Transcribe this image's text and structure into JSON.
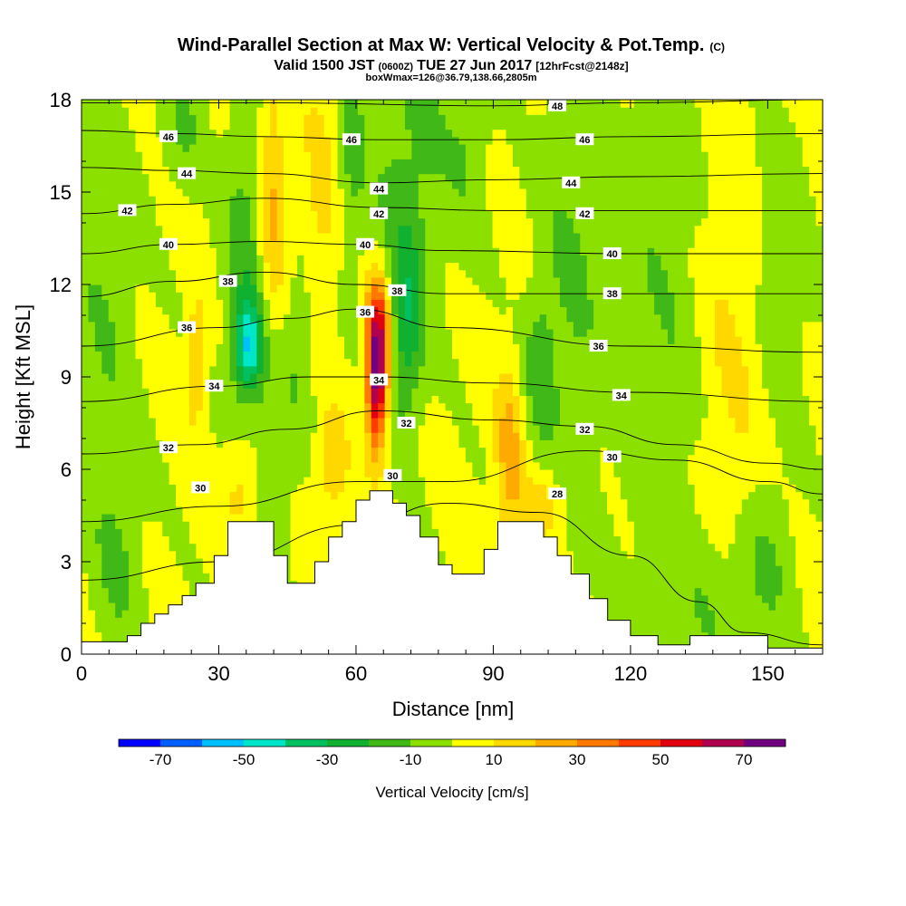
{
  "chart_data": {
    "type": "heatmap",
    "title": "Wind-Parallel Section at Max W: Vertical Velocity & Pot.Temp.",
    "title_mark": "(C)",
    "subtitle_parts": [
      "Valid 1500 JST",
      "(0600Z)",
      "TUE 27 Jun 2017",
      "[12hrFcst@2148z]"
    ],
    "subtitle2": "boxWmax=126@36.79,138.66,2805m",
    "xlabel": "Distance [nm]",
    "ylabel": "Height [Kft MSL]",
    "xlim": [
      0,
      162
    ],
    "ylim": [
      0,
      18
    ],
    "xticks": [
      "0",
      "30",
      "60",
      "90",
      "120",
      "150"
    ],
    "xtick_values": [
      0,
      30,
      60,
      90,
      120,
      150
    ],
    "yticks": [
      "0",
      "3",
      "6",
      "9",
      "12",
      "15",
      "18"
    ],
    "ytick_values": [
      0,
      3,
      6,
      9,
      12,
      15,
      18
    ],
    "colorbar": {
      "label": "Vertical Velocity [cm/s]",
      "tick_labels": [
        "-70",
        "-50",
        "-30",
        "-10",
        "10",
        "30",
        "50",
        "70"
      ],
      "tick_values": [
        -70,
        -50,
        -30,
        -10,
        10,
        30,
        50,
        70
      ],
      "bins": [
        -80,
        -70,
        -60,
        -50,
        -40,
        -30,
        -20,
        -10,
        0,
        10,
        20,
        30,
        40,
        50,
        60,
        70,
        80
      ],
      "colors": [
        "#0000ff",
        "#0060ff",
        "#00bfff",
        "#00e6c8",
        "#00c060",
        "#10b030",
        "#40b818",
        "#8ce000",
        "#ffff00",
        "#ffd800",
        "#ffaa00",
        "#ff7800",
        "#ff3c00",
        "#e00010",
        "#b00050",
        "#700080"
      ]
    },
    "terrain": [
      [
        0,
        0.4
      ],
      [
        10,
        0.4
      ],
      [
        10,
        0.6
      ],
      [
        13,
        0.6
      ],
      [
        13,
        1.0
      ],
      [
        16,
        1.0
      ],
      [
        16,
        1.3
      ],
      [
        19,
        1.3
      ],
      [
        19,
        1.6
      ],
      [
        22,
        1.6
      ],
      [
        22,
        1.9
      ],
      [
        25,
        1.9
      ],
      [
        25,
        2.3
      ],
      [
        29,
        2.3
      ],
      [
        29,
        3.2
      ],
      [
        32,
        3.2
      ],
      [
        32,
        4.3
      ],
      [
        42,
        4.3
      ],
      [
        42,
        3.2
      ],
      [
        45,
        3.2
      ],
      [
        45,
        2.3
      ],
      [
        51,
        2.3
      ],
      [
        51,
        3.0
      ],
      [
        54,
        3.0
      ],
      [
        54,
        3.8
      ],
      [
        57,
        3.8
      ],
      [
        57,
        4.3
      ],
      [
        60,
        4.3
      ],
      [
        60,
        5.0
      ],
      [
        63,
        5.0
      ],
      [
        63,
        5.3
      ],
      [
        68,
        5.3
      ],
      [
        68,
        4.9
      ],
      [
        71,
        4.9
      ],
      [
        71,
        4.5
      ],
      [
        74,
        4.5
      ],
      [
        74,
        3.8
      ],
      [
        78,
        3.8
      ],
      [
        78,
        2.9
      ],
      [
        81,
        2.9
      ],
      [
        81,
        2.6
      ],
      [
        88,
        2.6
      ],
      [
        88,
        3.4
      ],
      [
        91,
        3.4
      ],
      [
        91,
        4.3
      ],
      [
        101,
        4.3
      ],
      [
        101,
        3.8
      ],
      [
        104,
        3.8
      ],
      [
        104,
        3.2
      ],
      [
        107,
        3.2
      ],
      [
        107,
        2.6
      ],
      [
        111,
        2.6
      ],
      [
        111,
        1.8
      ],
      [
        115,
        1.8
      ],
      [
        115,
        1.1
      ],
      [
        120,
        1.1
      ],
      [
        120,
        0.6
      ],
      [
        126,
        0.6
      ],
      [
        126,
        0.3
      ],
      [
        133,
        0.3
      ],
      [
        133,
        0.6
      ],
      [
        150,
        0.6
      ],
      [
        150,
        0.2
      ],
      [
        162,
        0.2
      ]
    ],
    "w_features": [
      {
        "x": 36.5,
        "y": 10.0,
        "sx": 2.2,
        "sy": 1.0,
        "w": -40
      },
      {
        "x": 36,
        "y": 12.8,
        "sx": 3.5,
        "sy": 4.0,
        "w": -18
      },
      {
        "x": 48,
        "y": 10.2,
        "sx": 2.5,
        "sy": 2.2,
        "w": -13
      },
      {
        "x": 59,
        "y": 16.5,
        "sx": 2.2,
        "sy": 3.0,
        "w": -15
      },
      {
        "x": 71,
        "y": 10.7,
        "sx": 2.6,
        "sy": 2.2,
        "w": -25
      },
      {
        "x": 68,
        "y": 14.5,
        "sx": 4.0,
        "sy": 4.5,
        "w": -11
      },
      {
        "x": 76,
        "y": 16.5,
        "sx": 4.5,
        "sy": 3.5,
        "w": -11
      },
      {
        "x": 100,
        "y": 9.3,
        "sx": 2.5,
        "sy": 1.8,
        "w": -15
      },
      {
        "x": 107,
        "y": 12.5,
        "sx": 5.0,
        "sy": 6.0,
        "w": -12
      },
      {
        "x": 128,
        "y": 11.0,
        "sx": 8.0,
        "sy": 8.0,
        "w": -11
      },
      {
        "x": 150,
        "y": 3.0,
        "sx": 4.0,
        "sy": 2.0,
        "w": -12
      },
      {
        "x": 140,
        "y": 1.5,
        "sx": 6.0,
        "sy": 2.0,
        "w": -11
      },
      {
        "x": 5,
        "y": 11.5,
        "sx": 5.0,
        "sy": 5.0,
        "w": -11
      },
      {
        "x": 8,
        "y": 3.0,
        "sx": 4.0,
        "sy": 2.5,
        "w": -11
      },
      {
        "x": 22,
        "y": 17.2,
        "sx": 3.5,
        "sy": 1.5,
        "w": -12
      },
      {
        "x": 42,
        "y": 6.2,
        "sx": 3.0,
        "sy": 2.0,
        "w": -12
      },
      {
        "x": 85,
        "y": 17.0,
        "sx": 3.0,
        "sy": 2.5,
        "w": -11
      },
      {
        "x": 152,
        "y": 13.0,
        "sx": 5.0,
        "sy": 4.0,
        "w": -11
      },
      {
        "x": 64.5,
        "y": 8.8,
        "sx": 1.5,
        "sy": 1.7,
        "w": 58
      },
      {
        "x": 65,
        "y": 10.4,
        "sx": 2.2,
        "sy": 1.5,
        "w": 40
      },
      {
        "x": 41.5,
        "y": 14.8,
        "sx": 2.2,
        "sy": 2.8,
        "w": 22
      },
      {
        "x": 25,
        "y": 9.5,
        "sx": 1.5,
        "sy": 1.5,
        "w": 18
      },
      {
        "x": 93.5,
        "y": 6.5,
        "sx": 2.2,
        "sy": 2.0,
        "w": 22
      },
      {
        "x": 100,
        "y": 4.8,
        "sx": 3.5,
        "sy": 0.8,
        "w": 15
      },
      {
        "x": 52,
        "y": 14.5,
        "sx": 3.0,
        "sy": 3.0,
        "w": 12
      },
      {
        "x": 35,
        "y": 5.4,
        "sx": 3.0,
        "sy": 1.2,
        "w": 15
      },
      {
        "x": 142,
        "y": 10.5,
        "sx": 6.0,
        "sy": 6.0,
        "w": 12
      },
      {
        "x": 55,
        "y": 6.0,
        "sx": 2.5,
        "sy": 1.5,
        "w": 14
      }
    ],
    "theta_contours": [
      {
        "label": "28",
        "pts": [
          [
            0,
            2.4
          ],
          [
            30,
            3.0
          ],
          [
            60,
            4.2
          ],
          [
            80,
            4.9
          ],
          [
            100,
            4.6
          ],
          [
            120,
            3.2
          ],
          [
            135,
            1.7
          ],
          [
            145,
            0.7
          ],
          [
            162,
            0.3
          ]
        ]
      },
      {
        "label": "30",
        "pts": [
          [
            0,
            4.3
          ],
          [
            30,
            4.8
          ],
          [
            60,
            5.6
          ],
          [
            80,
            5.6
          ],
          [
            110,
            6.6
          ],
          [
            130,
            6.3
          ],
          [
            150,
            5.6
          ],
          [
            162,
            5.2
          ]
        ]
      },
      {
        "label": "32",
        "pts": [
          [
            0,
            6.5
          ],
          [
            25,
            6.8
          ],
          [
            45,
            7.3
          ],
          [
            65,
            7.9
          ],
          [
            90,
            7.6
          ],
          [
            110,
            7.4
          ],
          [
            130,
            6.8
          ],
          [
            150,
            6.2
          ],
          [
            162,
            6.0
          ]
        ]
      },
      {
        "label": "34",
        "pts": [
          [
            0,
            8.2
          ],
          [
            30,
            8.7
          ],
          [
            50,
            9.0
          ],
          [
            65,
            9.0
          ],
          [
            90,
            8.8
          ],
          [
            120,
            8.5
          ],
          [
            162,
            8.2
          ]
        ]
      },
      {
        "label": "36",
        "pts": [
          [
            0,
            10.0
          ],
          [
            30,
            10.6
          ],
          [
            45,
            10.9
          ],
          [
            60,
            11.2
          ],
          [
            80,
            10.6
          ],
          [
            120,
            10.0
          ],
          [
            162,
            9.8
          ]
        ]
      },
      {
        "label": "38",
        "pts": [
          [
            0,
            11.6
          ],
          [
            20,
            12.1
          ],
          [
            40,
            12.4
          ],
          [
            60,
            12.0
          ],
          [
            80,
            11.7
          ],
          [
            120,
            11.7
          ],
          [
            162,
            11.7
          ]
        ]
      },
      {
        "label": "40",
        "pts": [
          [
            0,
            13.0
          ],
          [
            20,
            13.3
          ],
          [
            40,
            13.4
          ],
          [
            60,
            13.3
          ],
          [
            80,
            13.1
          ],
          [
            120,
            13.0
          ],
          [
            162,
            13.0
          ]
        ]
      },
      {
        "label": "42",
        "pts": [
          [
            0,
            14.3
          ],
          [
            20,
            14.6
          ],
          [
            40,
            14.8
          ],
          [
            65,
            14.5
          ],
          [
            90,
            14.4
          ],
          [
            120,
            14.4
          ],
          [
            162,
            14.4
          ]
        ]
      },
      {
        "label": "44",
        "pts": [
          [
            0,
            15.8
          ],
          [
            20,
            15.7
          ],
          [
            40,
            15.6
          ],
          [
            65,
            15.3
          ],
          [
            90,
            15.4
          ],
          [
            120,
            15.5
          ],
          [
            162,
            15.6
          ]
        ]
      },
      {
        "label": "46",
        "pts": [
          [
            0,
            17.0
          ],
          [
            20,
            16.9
          ],
          [
            40,
            16.8
          ],
          [
            65,
            16.7
          ],
          [
            90,
            16.7
          ],
          [
            120,
            16.8
          ],
          [
            162,
            16.9
          ]
        ]
      },
      {
        "label": "48",
        "pts": [
          [
            0,
            17.9
          ],
          [
            40,
            17.9
          ],
          [
            90,
            17.8
          ],
          [
            120,
            17.9
          ],
          [
            162,
            18.0
          ]
        ]
      }
    ],
    "contour_labels": [
      {
        "text": "46",
        "x": 19,
        "y": 16.8
      },
      {
        "text": "46",
        "x": 59,
        "y": 16.7
      },
      {
        "text": "48",
        "x": 104,
        "y": 17.8
      },
      {
        "text": "46",
        "x": 110,
        "y": 16.7
      },
      {
        "text": "44",
        "x": 23,
        "y": 15.6
      },
      {
        "text": "44",
        "x": 65,
        "y": 15.1
      },
      {
        "text": "44",
        "x": 107,
        "y": 15.3
      },
      {
        "text": "42",
        "x": 10,
        "y": 14.4
      },
      {
        "text": "42",
        "x": 65,
        "y": 14.3
      },
      {
        "text": "42",
        "x": 110,
        "y": 14.3
      },
      {
        "text": "40",
        "x": 19,
        "y": 13.3
      },
      {
        "text": "40",
        "x": 62,
        "y": 13.3
      },
      {
        "text": "40",
        "x": 116,
        "y": 13.0
      },
      {
        "text": "38",
        "x": 32,
        "y": 12.1
      },
      {
        "text": "38",
        "x": 69,
        "y": 11.8
      },
      {
        "text": "38",
        "x": 116,
        "y": 11.7
      },
      {
        "text": "36",
        "x": 23,
        "y": 10.6
      },
      {
        "text": "36",
        "x": 62,
        "y": 11.1
      },
      {
        "text": "36",
        "x": 113,
        "y": 10.0
      },
      {
        "text": "34",
        "x": 29,
        "y": 8.7
      },
      {
        "text": "34",
        "x": 65,
        "y": 8.9
      },
      {
        "text": "34",
        "x": 118,
        "y": 8.4
      },
      {
        "text": "32",
        "x": 19,
        "y": 6.7
      },
      {
        "text": "32",
        "x": 71,
        "y": 7.5
      },
      {
        "text": "32",
        "x": 110,
        "y": 7.3
      },
      {
        "text": "30",
        "x": 26,
        "y": 5.4
      },
      {
        "text": "30",
        "x": 68,
        "y": 5.8
      },
      {
        "text": "30",
        "x": 116,
        "y": 6.4
      },
      {
        "text": "28",
        "x": 104,
        "y": 5.2
      }
    ]
  }
}
